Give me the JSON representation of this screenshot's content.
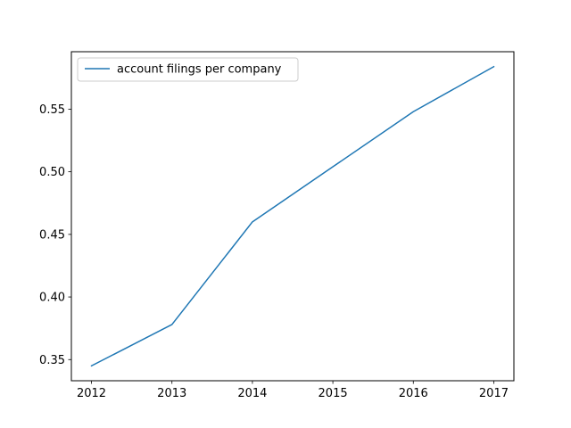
{
  "chart_data": {
    "type": "line",
    "title": "",
    "xlabel": "",
    "ylabel": "",
    "x": [
      2012,
      2013,
      2014,
      2015,
      2016,
      2017
    ],
    "series": [
      {
        "name": "account filings per company",
        "values": [
          0.345,
          0.378,
          0.46,
          0.504,
          0.548,
          0.584
        ],
        "color": "#1f77b4"
      }
    ],
    "xlim": [
      2011.75,
      2017.25
    ],
    "ylim": [
      0.3331,
      0.5959
    ],
    "xticks": [
      2012,
      2013,
      2014,
      2015,
      2016,
      2017
    ],
    "xtick_labels": [
      "2012",
      "2013",
      "2014",
      "2015",
      "2016",
      "2017"
    ],
    "yticks": [
      0.35,
      0.4,
      0.45,
      0.5,
      0.55
    ],
    "ytick_labels": [
      "0.35",
      "0.40",
      "0.45",
      "0.50",
      "0.55"
    ],
    "grid": false,
    "legend_position": "top-left"
  }
}
